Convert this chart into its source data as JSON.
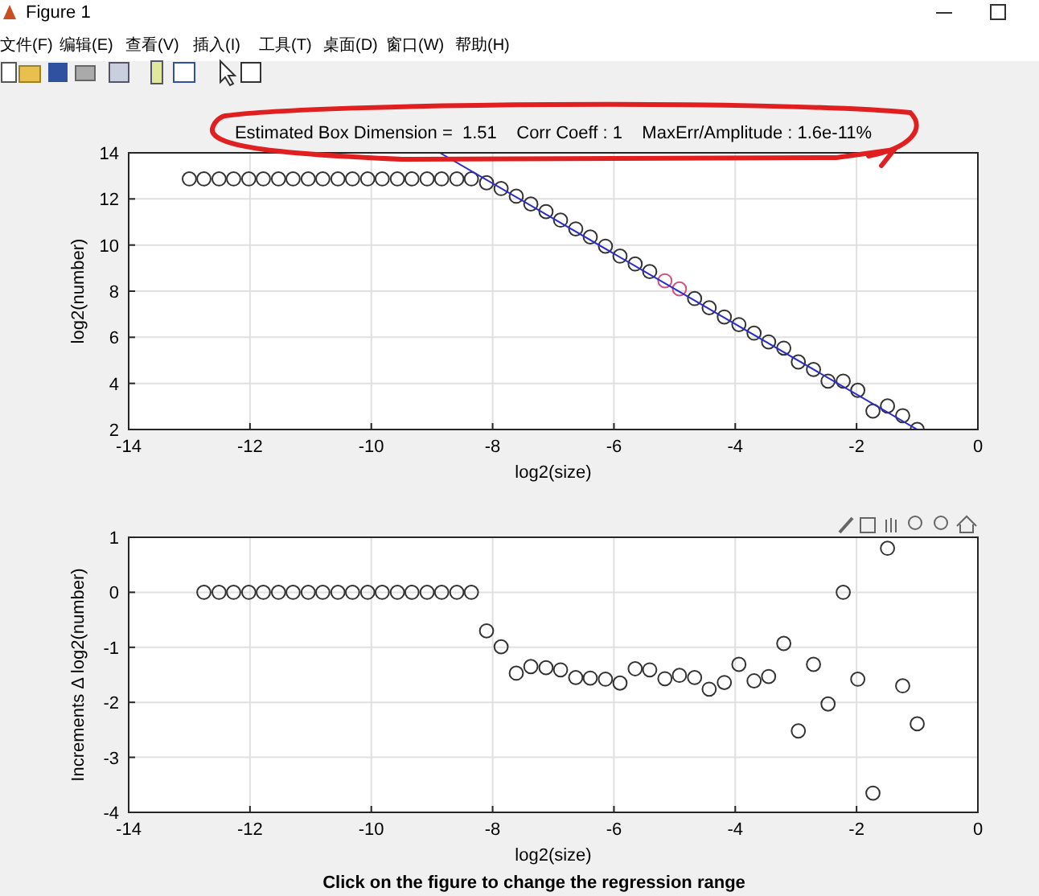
{
  "chart_data": [
    {
      "type": "scatter",
      "title": "Estimated Box Dimension =  1.51    Corr Coeff : 1    MaxErr/Amplitude : 1.6e-11%",
      "xlabel": "log2(size)",
      "ylabel": "log2(number)",
      "x": [
        -13.0,
        -12.76,
        -12.51,
        -12.27,
        -12.02,
        -11.78,
        -11.53,
        -11.29,
        -11.04,
        -10.8,
        -10.55,
        -10.31,
        -10.06,
        -9.82,
        -9.57,
        -9.33,
        -9.08,
        -8.84,
        -8.59,
        -8.35,
        -8.1,
        -7.86,
        -7.61,
        -7.37,
        -7.12,
        -6.88,
        -6.63,
        -6.39,
        -6.14,
        -5.9,
        -5.65,
        -5.41,
        -5.16,
        -4.92,
        -4.67,
        -4.43,
        -4.18,
        -3.94,
        -3.69,
        -3.45,
        -3.2,
        -2.96,
        -2.71,
        -2.47,
        -2.22,
        -1.98,
        -1.73,
        -1.49,
        -1.24,
        -1.0
      ],
      "series": [
        {
          "color": "#333333",
          "values": [
            12.87,
            12.87,
            12.87,
            12.87,
            12.87,
            12.87,
            12.87,
            12.87,
            12.87,
            12.87,
            12.87,
            12.87,
            12.87,
            12.87,
            12.87,
            12.87,
            12.87,
            12.87,
            12.87,
            12.87,
            12.7,
            12.45,
            12.12,
            11.78,
            11.45,
            11.08,
            10.7,
            10.35,
            9.95,
            9.52,
            9.18,
            8.85,
            null,
            null,
            7.68,
            7.28,
            6.88,
            6.55,
            6.18,
            5.8,
            5.53,
            4.93,
            4.6,
            4.1,
            4.1,
            3.7,
            2.8,
            3.02,
            2.6,
            2.0
          ]
        },
        {
          "color": "#d05080",
          "x": [
            -5.16,
            -4.92
          ],
          "values": [
            8.45,
            8.1
          ]
        },
        {
          "type": "line",
          "color": "#2c2cc8",
          "marker": "none",
          "x": [
            -8.87,
            -1.0
          ],
          "values": [
            14,
            2
          ]
        }
      ],
      "xlim": [
        -14,
        0
      ],
      "xticks": [
        -14,
        -12,
        -10,
        -8,
        -6,
        -4,
        -2,
        0
      ],
      "ylim": [
        2,
        14
      ],
      "yticks": [
        2,
        4,
        6,
        8,
        10,
        12,
        14
      ],
      "grid": true,
      "marker": "circle",
      "annotations": [
        "Figure 1",
        "文件(F)",
        "编辑(E)",
        "查看(V)",
        "插入(I)",
        "工具(T)",
        "桌面(D)",
        "窗口(W)",
        "帮助(H)"
      ]
    },
    {
      "type": "scatter",
      "xlabel": "log2(size)",
      "ylabel": "Increments Δ log2(number)",
      "x": [
        -12.76,
        -12.51,
        -12.27,
        -12.02,
        -11.78,
        -11.53,
        -11.29,
        -11.04,
        -10.8,
        -10.55,
        -10.31,
        -10.06,
        -9.82,
        -9.57,
        -9.33,
        -9.08,
        -8.84,
        -8.59,
        -8.35,
        -8.1,
        -7.86,
        -7.61,
        -7.37,
        -7.12,
        -6.88,
        -6.63,
        -6.39,
        -6.14,
        -5.9,
        -5.65,
        -5.41,
        -5.16,
        -4.92,
        -4.67,
        -4.43,
        -4.18,
        -3.94,
        -3.69,
        -3.45,
        -3.2,
        -2.96,
        -2.71,
        -2.47,
        -2.22,
        -1.98,
        -1.73,
        -1.49,
        -1.24,
        -1.0
      ],
      "series": [
        {
          "color": "#333333",
          "values": [
            0,
            0,
            0,
            0,
            0,
            0,
            0,
            0,
            0,
            0,
            0,
            0,
            0,
            0,
            0,
            0,
            0,
            0,
            0,
            -0.7,
            -0.99,
            -1.47,
            -1.35,
            -1.37,
            -1.41,
            -1.55,
            -1.56,
            -1.58,
            -1.65,
            -1.39,
            -1.41,
            -1.57,
            -1.51,
            -1.55,
            -1.76,
            -1.64,
            -1.31,
            -1.61,
            -1.53,
            -0.93,
            -2.52,
            -1.31,
            -2.03,
            0.0,
            -1.58,
            -3.65,
            0.8,
            -1.7,
            -2.39
          ]
        }
      ],
      "xlim": [
        -14,
        0
      ],
      "xticks": [
        -14,
        -12,
        -10,
        -8,
        -6,
        -4,
        -2,
        0
      ],
      "ylim": [
        -4,
        1
      ],
      "yticks": [
        -4,
        -3,
        -2,
        -1,
        0,
        1
      ],
      "grid": true,
      "marker": "circle",
      "annotations": [
        "Click on the figure to change the regression range"
      ]
    }
  ]
}
